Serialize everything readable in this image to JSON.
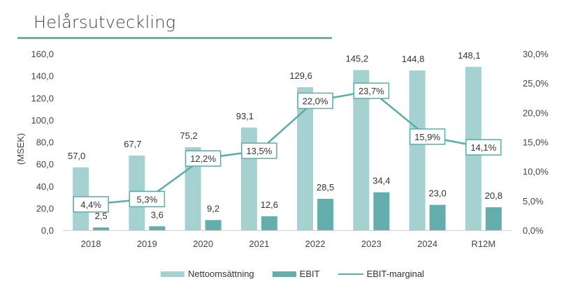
{
  "header": {
    "title": "Helårsutveckling"
  },
  "colors": {
    "revenue": "#a6d1d1",
    "ebit": "#64aeae",
    "margin": "#5aadad",
    "rule": "#66b2b2"
  },
  "chart_data": {
    "type": "bar",
    "title": "Helårsutveckling",
    "categories": [
      "2018",
      "2019",
      "2020",
      "2021",
      "2022",
      "2023",
      "2024",
      "R12M"
    ],
    "series": [
      {
        "name": "Nettoomsättning",
        "type": "bar",
        "axis": "left",
        "values": [
          57.0,
          67.7,
          75.2,
          93.1,
          129.6,
          145.2,
          144.8,
          148.1
        ],
        "labels": [
          "57,0",
          "67,7",
          "75,2",
          "93,1",
          "129,6",
          "145,2",
          "144,8",
          "148,1"
        ]
      },
      {
        "name": "EBIT",
        "type": "bar",
        "axis": "left",
        "values": [
          2.5,
          3.6,
          9.2,
          12.6,
          28.5,
          34.4,
          23.0,
          20.8
        ],
        "labels": [
          "2,5",
          "3,6",
          "9,2",
          "12,6",
          "28,5",
          "34,4",
          "23,0",
          "20,8"
        ]
      },
      {
        "name": "EBIT-marginal",
        "type": "line",
        "axis": "right",
        "values": [
          4.4,
          5.3,
          12.2,
          13.5,
          22.0,
          23.7,
          15.9,
          14.1
        ],
        "labels": [
          "4,4%",
          "5,3%",
          "12,2%",
          "13,5%",
          "22,0%",
          "23,7%",
          "15,9%",
          "14,1%"
        ]
      }
    ],
    "ylabel": "(MSEK)",
    "ylim": [
      0,
      160
    ],
    "y_ticks": [
      "0,0",
      "20,0",
      "40,0",
      "60,0",
      "80,0",
      "100,0",
      "120,0",
      "140,0",
      "160,0"
    ],
    "y2lim": [
      0,
      30
    ],
    "y2_ticks": [
      "0,0%",
      "5,0%",
      "10,0%",
      "15,0%",
      "20,0%",
      "25,0%",
      "30,0%"
    ],
    "grid": false,
    "legend": {
      "position": "bottom",
      "entries": [
        "Nettoomsättning",
        "EBIT",
        "EBIT-marginal"
      ]
    }
  }
}
